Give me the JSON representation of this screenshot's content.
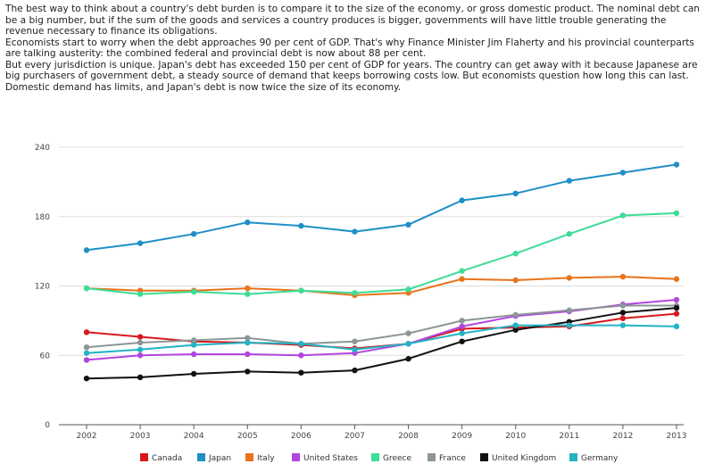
{
  "intro": {
    "p1": "The best way to think about a country's debt burden is to compare it to the size of the economy, or gross domestic product. The nominal debt can be a big number, but if the sum of the goods and services a country produces is bigger, governments will have little trouble generating the revenue necessary to finance its obligations.",
    "p2": "Economists start to worry when the debt approaches 90 per cent of GDP. That's why Finance Minister Jim Flaherty and his provincial counterparts are talking austerity: the combined federal and provincial debt is now about 88 per cent.",
    "p3": "But every jurisdiction is unique. Japan's debt has exceeded 150 per cent of GDP for years. The country can get away with it because Japanese are big purchasers of government debt, a steady source of demand that keeps borrowing costs low. But economists question how long this can last. Domestic demand has limits, and Japan's debt is now twice the size of its economy."
  },
  "chart_data": {
    "type": "line",
    "x": [
      "2002",
      "2003",
      "2004",
      "2005",
      "2006",
      "2007",
      "2008",
      "2009",
      "2010",
      "2011",
      "2012",
      "2013"
    ],
    "ylim": [
      0,
      240
    ],
    "yticks": [
      0,
      60,
      120,
      180,
      240
    ],
    "grid": "horizontal",
    "legend": "bottom",
    "series": [
      {
        "name": "Canada",
        "color": "#d7191c",
        "values": [
          80,
          76,
          72,
          71,
          69,
          66,
          70,
          83,
          84,
          85,
          92,
          96
        ]
      },
      {
        "name": "Japan",
        "color": "#1f8fc6",
        "values": [
          151,
          157,
          165,
          175,
          172,
          167,
          173,
          194,
          200,
          211,
          218,
          225
        ]
      },
      {
        "name": "Italy",
        "color": "#e8731a",
        "values": [
          118,
          116,
          116,
          118,
          116,
          112,
          114,
          126,
          125,
          127,
          128,
          126
        ]
      },
      {
        "name": "United States",
        "color": "#b245e0",
        "values": [
          56,
          60,
          61,
          61,
          60,
          62,
          70,
          85,
          94,
          98,
          104,
          108
        ]
      },
      {
        "name": "Greece",
        "color": "#3ddc97",
        "values": [
          118,
          113,
          115,
          113,
          116,
          114,
          117,
          133,
          148,
          165,
          181,
          183
        ]
      },
      {
        "name": "France",
        "color": "#8c9696",
        "values": [
          67,
          71,
          73,
          75,
          70,
          72,
          79,
          90,
          95,
          99,
          103,
          103
        ]
      },
      {
        "name": "United Kingdom",
        "color": "#111111",
        "values": [
          40,
          41,
          44,
          46,
          45,
          47,
          57,
          72,
          82,
          89,
          97,
          101
        ]
      },
      {
        "name": "Germany",
        "color": "#23b3c4",
        "values": [
          62,
          65,
          69,
          71,
          70,
          65,
          70,
          79,
          86,
          86,
          86,
          85
        ]
      }
    ]
  }
}
